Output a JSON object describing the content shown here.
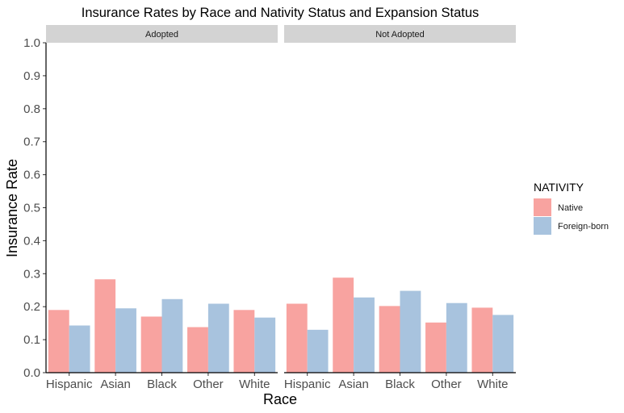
{
  "chart_data": {
    "type": "bar",
    "title": "Insurance Rates by Race and Nativity Status and Expansion Status",
    "xlabel": "Race",
    "ylabel": "Insurance Rate",
    "ylim": [
      0,
      1
    ],
    "yticks": [
      "0.0",
      "0.1",
      "0.2",
      "0.3",
      "0.4",
      "0.5",
      "0.6",
      "0.7",
      "0.8",
      "0.9",
      "1.0"
    ],
    "categories": [
      "Hispanic",
      "Asian",
      "Black",
      "Other",
      "White"
    ],
    "grid": false,
    "legend": {
      "title": "NATIVITY",
      "placement": "right",
      "entries": [
        {
          "name": "Native",
          "color": "#f8a3a0"
        },
        {
          "name": "Foreign-born",
          "color": "#a8c3de"
        }
      ]
    },
    "facets": [
      {
        "label": "Adopted",
        "series": [
          {
            "name": "Native",
            "values": [
              0.19,
              0.283,
              0.17,
              0.138,
              0.19
            ]
          },
          {
            "name": "Foreign-born",
            "values": [
              0.143,
              0.195,
              0.223,
              0.209,
              0.167
            ]
          }
        ]
      },
      {
        "label": "Not Adopted",
        "series": [
          {
            "name": "Native",
            "values": [
              0.209,
              0.288,
              0.202,
              0.152,
              0.197
            ]
          },
          {
            "name": "Foreign-born",
            "values": [
              0.13,
              0.228,
              0.248,
              0.211,
              0.175
            ]
          }
        ]
      }
    ]
  }
}
